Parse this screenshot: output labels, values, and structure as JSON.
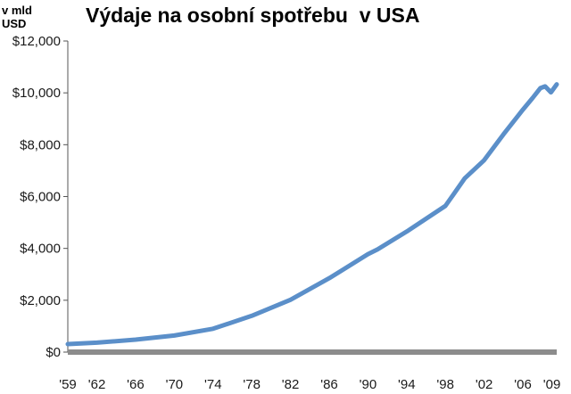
{
  "title": "Výdaje na osobní spotřebu  v USA",
  "unit_label": [
    "v mld",
    "USD"
  ],
  "chart_data": {
    "type": "line",
    "title": "Výdaje na osobní spotřebu  v USA",
    "xlabel": "",
    "ylabel": "v mld USD",
    "xlim": [
      1959,
      2009.5
    ],
    "ylim": [
      0,
      12000
    ],
    "grid": false,
    "y_ticks": [
      0,
      2000,
      4000,
      6000,
      8000,
      10000,
      12000
    ],
    "y_tick_labels": [
      "$0",
      "$2,000",
      "$4,000",
      "$6,000",
      "$8,000",
      "$10,000",
      "$12,000"
    ],
    "x_ticks": [
      1959,
      1962,
      1966,
      1970,
      1974,
      1978,
      1982,
      1986,
      1990,
      1994,
      1998,
      2002,
      2006,
      2009
    ],
    "x_tick_labels": [
      "'59",
      "'62",
      "'66",
      "'70",
      "'74",
      "'78",
      "'82",
      "'86",
      "'90",
      "'94",
      "'98",
      "'02",
      "'06",
      "'09"
    ],
    "series": [
      {
        "color": "#5b8fc9",
        "x": [
          1959,
          1962,
          1966,
          1970,
          1974,
          1978,
          1982,
          1986,
          1990,
          1991,
          1994,
          1998,
          2000,
          2002,
          2004,
          2006,
          2007,
          2007.8,
          2008.3,
          2008.9,
          2009.5
        ],
        "y": [
          310,
          365,
          480,
          640,
          900,
          1400,
          2020,
          2850,
          3780,
          3960,
          4650,
          5640,
          6700,
          7400,
          8400,
          9350,
          9800,
          10180,
          10250,
          10020,
          10330
        ]
      }
    ],
    "baseline_color": "#8c8c8c"
  }
}
